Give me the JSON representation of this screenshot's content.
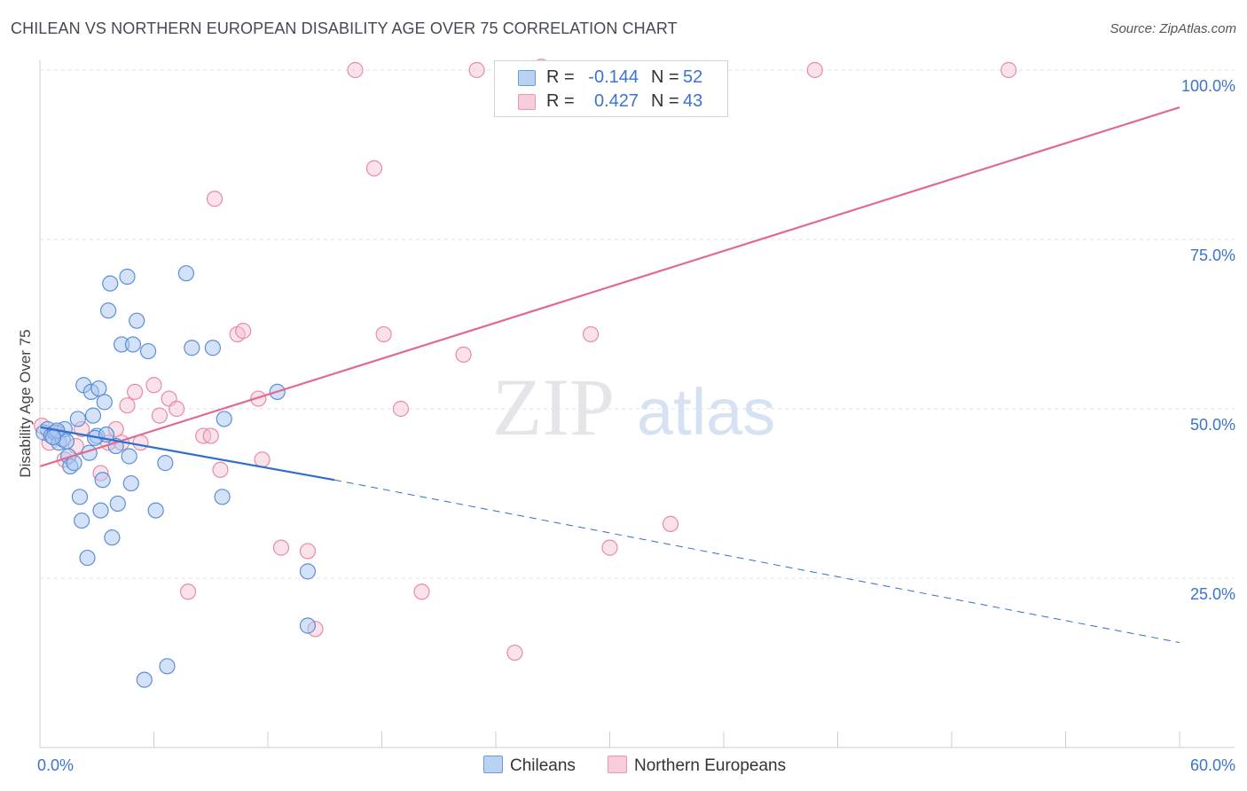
{
  "title": "CHILEAN VS NORTHERN EUROPEAN DISABILITY AGE OVER 75 CORRELATION CHART",
  "source": "Source: ZipAtlas.com",
  "watermark": {
    "zip": "ZIP",
    "atlas": "atlas"
  },
  "legend": {
    "chileans": {
      "r_label": "R =",
      "r_value": "-0.144",
      "n_label": "N =",
      "n_value": "52"
    },
    "northern": {
      "r_label": "R =",
      "r_value": "0.427",
      "n_label": "N =",
      "n_value": "43"
    }
  },
  "bottom_legend": {
    "chileans": "Chileans",
    "northern": "Northern Europeans"
  },
  "colors": {
    "blue_fill": "#a9c6ef",
    "blue_stroke": "#5b8fd6",
    "blue_line": "#2f6fcc",
    "pink_fill": "#f5bfd0",
    "pink_stroke": "#e88aa7",
    "pink_line": "#e06a93",
    "axis_label": "#3a73d0",
    "grid": "#dde2ea"
  },
  "chart_data": {
    "type": "scatter",
    "title": "CHILEAN VS NORTHERN EUROPEAN DISABILITY AGE OVER 75 CORRELATION CHART",
    "xlabel": "",
    "ylabel": "Disability Age Over 75",
    "xlim": [
      0,
      60
    ],
    "ylim": [
      0,
      103
    ],
    "x_tick_labels": [
      "0.0%",
      "60.0%"
    ],
    "y_ticks": [
      25,
      50,
      75,
      100
    ],
    "y_tick_labels": [
      "25.0%",
      "50.0%",
      "75.0%",
      "100.0%"
    ],
    "series": [
      {
        "name": "Chileans",
        "r": -0.144,
        "n": 52,
        "trend": {
          "x0": 0,
          "y0": 47.3,
          "x1": 15.5,
          "y1": 39.5,
          "dash_to_x": 60,
          "dash_to_y": 15.5
        },
        "points": [
          [
            0.2,
            46.5
          ],
          [
            0.4,
            47.0
          ],
          [
            0.6,
            46.0
          ],
          [
            0.8,
            46.5
          ],
          [
            1.0,
            45.0
          ],
          [
            1.2,
            45.5
          ],
          [
            1.3,
            47.0
          ],
          [
            1.5,
            43.0
          ],
          [
            1.6,
            41.5
          ],
          [
            1.8,
            42.0
          ],
          [
            2.0,
            48.5
          ],
          [
            2.1,
            37.0
          ],
          [
            2.2,
            33.5
          ],
          [
            2.3,
            53.5
          ],
          [
            2.5,
            28.0
          ],
          [
            2.6,
            43.5
          ],
          [
            2.7,
            52.5
          ],
          [
            2.8,
            49.0
          ],
          [
            3.0,
            46.0
          ],
          [
            3.1,
            53.0
          ],
          [
            3.2,
            35.0
          ],
          [
            3.3,
            39.5
          ],
          [
            3.4,
            51.0
          ],
          [
            3.7,
            68.5
          ],
          [
            3.6,
            64.5
          ],
          [
            3.8,
            31.0
          ],
          [
            4.0,
            44.5
          ],
          [
            4.1,
            36.0
          ],
          [
            4.3,
            59.5
          ],
          [
            4.6,
            69.5
          ],
          [
            4.7,
            43.0
          ],
          [
            4.8,
            39.0
          ],
          [
            4.9,
            59.5
          ],
          [
            5.1,
            63.0
          ],
          [
            5.5,
            10.0
          ],
          [
            5.7,
            58.5
          ],
          [
            6.1,
            35.0
          ],
          [
            6.6,
            42.0
          ],
          [
            6.7,
            12.0
          ],
          [
            7.7,
            70.0
          ],
          [
            8.0,
            59.0
          ],
          [
            9.1,
            59.0
          ],
          [
            9.6,
            37.0
          ],
          [
            9.7,
            48.5
          ],
          [
            12.5,
            52.5
          ],
          [
            14.1,
            26.0
          ],
          [
            14.1,
            18.0
          ],
          [
            0.9,
            46.8
          ],
          [
            1.4,
            45.2
          ],
          [
            0.7,
            45.8
          ],
          [
            2.9,
            45.7
          ],
          [
            3.5,
            46.2
          ]
        ]
      },
      {
        "name": "Northern Europeans",
        "r": 0.427,
        "n": 43,
        "trend": {
          "x0": 0,
          "y0": 41.5,
          "x1": 60,
          "y1": 94.5
        },
        "points": [
          [
            0.1,
            47.5
          ],
          [
            0.5,
            45.0
          ],
          [
            0.9,
            46.5
          ],
          [
            1.3,
            42.5
          ],
          [
            1.9,
            44.5
          ],
          [
            2.2,
            47.0
          ],
          [
            3.2,
            40.5
          ],
          [
            3.6,
            45.0
          ],
          [
            4.0,
            47.0
          ],
          [
            4.3,
            45.0
          ],
          [
            4.6,
            50.5
          ],
          [
            5.0,
            52.5
          ],
          [
            5.3,
            45.0
          ],
          [
            6.0,
            53.5
          ],
          [
            6.3,
            49.0
          ],
          [
            6.8,
            51.5
          ],
          [
            7.2,
            50.0
          ],
          [
            7.8,
            23.0
          ],
          [
            8.6,
            46.0
          ],
          [
            9.0,
            46.0
          ],
          [
            9.2,
            81.0
          ],
          [
            9.5,
            41.0
          ],
          [
            10.4,
            61.0
          ],
          [
            10.7,
            61.5
          ],
          [
            11.5,
            51.5
          ],
          [
            11.7,
            42.5
          ],
          [
            12.7,
            29.5
          ],
          [
            14.1,
            29.0
          ],
          [
            14.5,
            17.5
          ],
          [
            16.6,
            100.0
          ],
          [
            17.6,
            85.5
          ],
          [
            18.1,
            61.0
          ],
          [
            19.0,
            50.0
          ],
          [
            20.1,
            23.0
          ],
          [
            22.3,
            58.0
          ],
          [
            23.0,
            100.0
          ],
          [
            25.0,
            14.0
          ],
          [
            26.4,
            100.5
          ],
          [
            29.0,
            61.0
          ],
          [
            30.0,
            29.5
          ],
          [
            33.2,
            33.0
          ],
          [
            40.8,
            100.0
          ],
          [
            51.0,
            100.0
          ]
        ]
      }
    ]
  }
}
